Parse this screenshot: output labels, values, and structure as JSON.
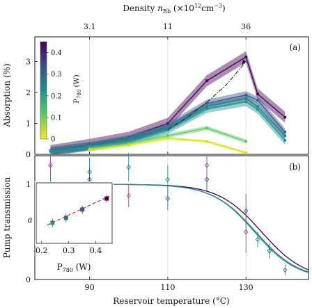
{
  "chart_data": [
    {
      "panel": "(a)",
      "type": "line",
      "top_axis": {
        "label_prefix": "Density ",
        "label_var": "n",
        "label_sub": "Rb",
        "label_units": " (×10",
        "label_exp": "12",
        "label_units2": "cm",
        "label_exp2": "−3",
        "label_close": ")",
        "ticks": [
          {
            "x": 90,
            "label": "3.1"
          },
          {
            "x": 110,
            "label": "11"
          },
          {
            "x": 130,
            "label": "36"
          }
        ]
      },
      "ylabel": "Absorption (%)",
      "yticks": [
        "0",
        "1",
        "2",
        "3"
      ],
      "ylim": [
        0,
        3.8
      ],
      "xlim": [
        76,
        146
      ],
      "grid": "vertical at x-ticks",
      "colorbar": {
        "label": "P",
        "label_sub": "780",
        "label_unit": " (W)",
        "ticks": [
          "0",
          "0.1",
          "0.2",
          "0.3",
          "0.4"
        ],
        "range": [
          0,
          0.45
        ]
      },
      "series": [
        {
          "p780": 0.44,
          "color": "#440154",
          "x": [
            80,
            85,
            90,
            100,
            110,
            120,
            130,
            133,
            140
          ],
          "y": [
            0.12,
            0.22,
            0.32,
            0.55,
            1.0,
            2.38,
            3.15,
            1.95,
            1.2
          ],
          "band": 0.18
        },
        {
          "p780": 0.35,
          "color": "#3b528b",
          "x": [
            80,
            85,
            90,
            100,
            110,
            120,
            130,
            133,
            140
          ],
          "y": [
            0.11,
            0.2,
            0.28,
            0.5,
            0.9,
            1.65,
            1.92,
            1.75,
            0.72
          ],
          "band": 0.12
        },
        {
          "p780": 0.29,
          "color": "#2c728e",
          "x": [
            80,
            85,
            90,
            100,
            110,
            120,
            130,
            133,
            140
          ],
          "y": [
            0.1,
            0.18,
            0.26,
            0.47,
            0.85,
            1.55,
            1.8,
            1.55,
            0.6
          ],
          "band": 0.12
        },
        {
          "p780": 0.24,
          "color": "#21918c",
          "x": [
            80,
            85,
            90,
            100,
            110,
            120,
            130,
            133,
            140
          ],
          "y": [
            0.1,
            0.17,
            0.25,
            0.45,
            0.8,
            1.48,
            1.7,
            1.45,
            0.45
          ],
          "band": 0.14
        },
        {
          "p780": 0.15,
          "color": "#5ec962",
          "x": [
            90,
            100,
            110,
            120,
            130
          ],
          "y": [
            0.18,
            0.35,
            0.6,
            0.85,
            0.42
          ],
          "band": 0.07
        },
        {
          "p780": 0.03,
          "color": "#d8e219",
          "x": [
            90,
            100,
            110,
            120,
            130
          ],
          "y": [
            0.15,
            0.3,
            0.52,
            0.42,
            0.05
          ],
          "band": 0.05
        }
      ],
      "guide_curve": {
        "style": "dash-dot",
        "x": [
          110,
          115,
          120,
          125,
          130
        ],
        "y": [
          0.8,
          1.2,
          1.68,
          2.25,
          3.0
        ]
      }
    },
    {
      "panel": "(b)",
      "type": "line",
      "ylabel": "Pump transmission",
      "xlabel": "Reservoir temperature (°C)",
      "xticks": [
        90,
        110,
        130
      ],
      "yticks": [
        "0",
        "1"
      ],
      "ylim": [
        0,
        1.3
      ],
      "xlim": [
        76,
        146
      ],
      "fits": [
        {
          "color": "#440154",
          "x0": 134.0,
          "w": 5.5
        },
        {
          "color": "#2c728e",
          "x0": 132.5,
          "w": 5.5
        },
        {
          "color": "#21918c",
          "x0": 132.2,
          "w": 5.4
        }
      ],
      "points": [
        {
          "x": 80,
          "y": 1.0,
          "err": 0.18,
          "color": "#2c728e"
        },
        {
          "x": 80,
          "y": 1.2,
          "err": 0.12,
          "color": "#9b4f96"
        },
        {
          "x": 90,
          "y": 1.13,
          "err": 0.15,
          "color": "#21918c"
        },
        {
          "x": 90,
          "y": 1.05,
          "err": 0.12,
          "color": "#3b528b"
        },
        {
          "x": 100,
          "y": 1.18,
          "err": 0.15,
          "color": "#21918c"
        },
        {
          "x": 100,
          "y": 0.88,
          "err": 0.12,
          "color": "#9b4f96"
        },
        {
          "x": 110,
          "y": 1.05,
          "err": 0.15,
          "color": "#21918c"
        },
        {
          "x": 110,
          "y": 0.85,
          "err": 0.12,
          "color": "#2c728e"
        },
        {
          "x": 120,
          "y": 1.05,
          "err": 0.13,
          "color": "#3b528b"
        },
        {
          "x": 120,
          "y": 1.2,
          "err": 0.1,
          "color": "#9b4f96"
        },
        {
          "x": 130,
          "y": 0.72,
          "err": 0.18,
          "color": "#2c728e"
        },
        {
          "x": 130,
          "y": 0.5,
          "err": 0.22,
          "color": "#9b4f96"
        },
        {
          "x": 133,
          "y": 0.42,
          "err": 0.08,
          "color": "#21918c"
        },
        {
          "x": 136,
          "y": 0.3,
          "err": 0.08,
          "color": "#2c728e"
        },
        {
          "x": 140,
          "y": 0.1,
          "err": 0.06,
          "color": "#21918c"
        }
      ],
      "inset": {
        "ylabel": "a",
        "xlabel": "P",
        "xlabel_sub": "780",
        "xlabel_unit": " (W)",
        "xticks": [
          "0.2",
          "0.3",
          "0.4"
        ],
        "xlim": [
          0.18,
          0.46
        ],
        "ylim": [
          0,
          1
        ],
        "points": [
          {
            "x": 0.24,
            "y": 0.34,
            "color": "#21918c"
          },
          {
            "x": 0.29,
            "y": 0.42,
            "color": "#2c728e"
          },
          {
            "x": 0.35,
            "y": 0.56,
            "color": "#3b528b"
          },
          {
            "x": 0.44,
            "y": 0.74,
            "color": "#440154"
          }
        ],
        "fit": {
          "style": "dashed",
          "color": "#d62728",
          "x": [
            0.22,
            0.45
          ],
          "y": [
            0.3,
            0.78
          ]
        }
      }
    }
  ]
}
